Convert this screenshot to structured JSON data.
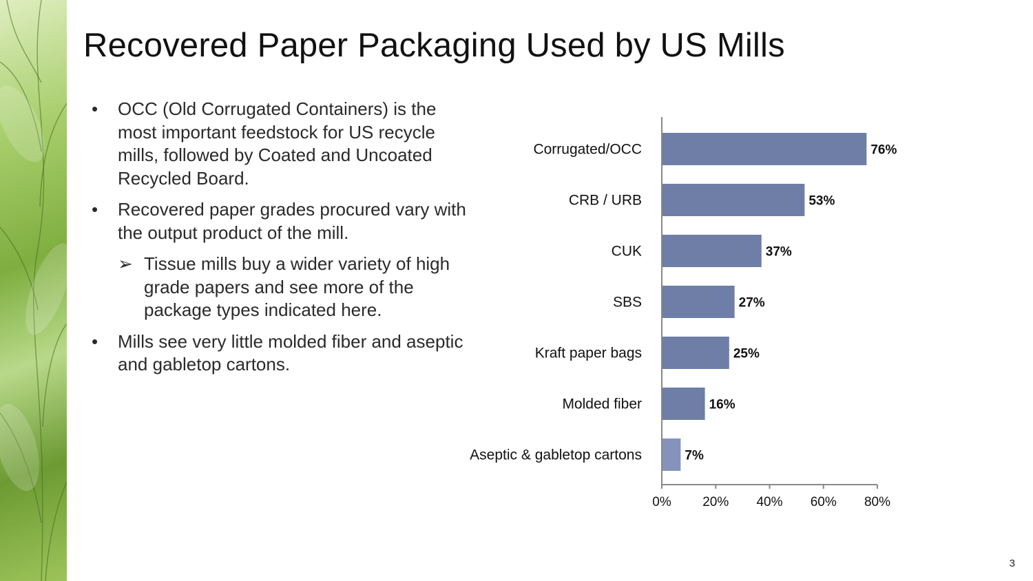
{
  "slide": {
    "title": "Recovered Paper Packaging Used by US Mills",
    "page_number": "3"
  },
  "bullets": [
    {
      "level": 1,
      "marker": "•",
      "text": "OCC (Old Corrugated Containers) is the most important feedstock for US recycle mills, followed by Coated and Uncoated Recycled Board."
    },
    {
      "level": 1,
      "marker": "•",
      "text": "Recovered paper grades procured vary with the output product of the mill."
    },
    {
      "level": 2,
      "marker": "➢",
      "text": "Tissue mills buy a wider variety of high grade papers and see more of the package types indicated here."
    },
    {
      "level": 1,
      "marker": "•",
      "text": "Mills see very little molded fiber and aseptic and gabletop cartons."
    }
  ],
  "chart_data": {
    "type": "bar",
    "orientation": "horizontal",
    "categories": [
      "Corrugated/OCC",
      "CRB / URB",
      "CUK",
      "SBS",
      "Kraft paper bags",
      "Molded fiber",
      "Aseptic & gabletop cartons"
    ],
    "values": [
      76,
      53,
      37,
      27,
      25,
      16,
      7
    ],
    "value_labels": [
      "76%",
      "53%",
      "37%",
      "27%",
      "25%",
      "16%",
      "7%"
    ],
    "xlim": [
      0,
      80
    ],
    "xticks": [
      0,
      20,
      40,
      60,
      80
    ],
    "xtick_labels": [
      "0%",
      "20%",
      "40%",
      "60%",
      "80%"
    ],
    "grid": false,
    "legend": false,
    "colors": {
      "bar": "#6e7ea6",
      "bar_last": "#8593bb",
      "axis": "#888888"
    }
  }
}
